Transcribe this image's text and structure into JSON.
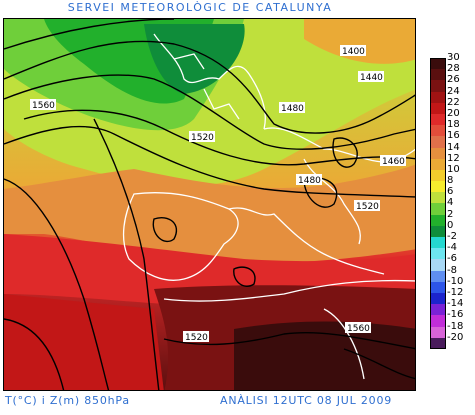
{
  "header": {
    "title": "SERVEI METEOROLÒGIC DE CATALUNYA"
  },
  "footer": {
    "left": "T(°C) i Z(m) 850hPa",
    "right": "ANÀLISI 12UTC 08 JUL 2009"
  },
  "map": {
    "contour_labels": [
      "1400",
      "1440",
      "1480",
      "1560",
      "1520",
      "1460",
      "1480",
      "1520",
      "1520",
      "1560"
    ]
  },
  "colorbar": {
    "levels": [
      {
        "label": "30",
        "color": "#3a0c0c"
      },
      {
        "label": "28",
        "color": "#5a0f0f"
      },
      {
        "label": "26",
        "color": "#7a1212"
      },
      {
        "label": "24",
        "color": "#a01313"
      },
      {
        "label": "22",
        "color": "#c21717"
      },
      {
        "label": "20",
        "color": "#df2a2a"
      },
      {
        "label": "18",
        "color": "#e24d3a"
      },
      {
        "label": "16",
        "color": "#e0704a"
      },
      {
        "label": "14",
        "color": "#e58f3e"
      },
      {
        "label": "12",
        "color": "#eaaa36"
      },
      {
        "label": "10",
        "color": "#f2cd2c"
      },
      {
        "label": "8",
        "color": "#f6ec2e"
      },
      {
        "label": "6",
        "color": "#bfe03c"
      },
      {
        "label": "4",
        "color": "#6fcf3a"
      },
      {
        "label": "2",
        "color": "#22b02c"
      },
      {
        "label": "0",
        "color": "#0f8d3a"
      },
      {
        "label": "-2",
        "color": "#25d8d0"
      },
      {
        "label": "-4",
        "color": "#6ee5f0"
      },
      {
        "label": "-6",
        "color": "#a8d8f5"
      },
      {
        "label": "-8",
        "color": "#5f8ef0"
      },
      {
        "label": "-10",
        "color": "#2d55e8"
      },
      {
        "label": "-12",
        "color": "#1c24cc"
      },
      {
        "label": "-14",
        "color": "#7a22d6"
      },
      {
        "label": "-16",
        "color": "#c12dd8"
      },
      {
        "label": "-18",
        "color": "#d864d8"
      },
      {
        "label": "-20",
        "color": "#4a1c5c"
      }
    ],
    "extra_label": "-20"
  }
}
